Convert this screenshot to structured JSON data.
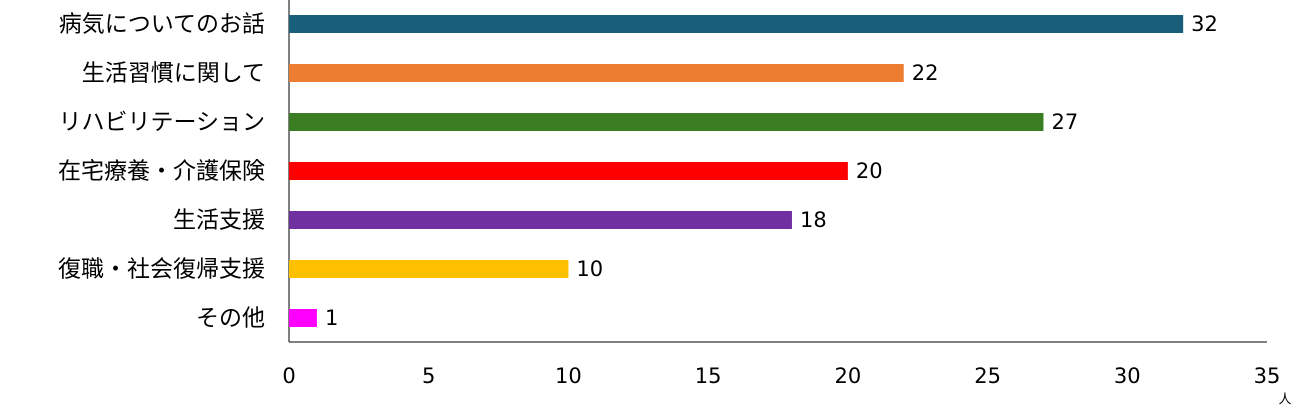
{
  "chart_data": {
    "type": "hbar",
    "categories": [
      "病気についてのお話",
      "生活習慣に関して",
      "リハビリテーション",
      "在宅療養・介護保険",
      "生活支援",
      "復職・社会復帰支援",
      "その他"
    ],
    "values": [
      32,
      22,
      27,
      20,
      18,
      10,
      1
    ],
    "colors": [
      "#1a5f7a",
      "#ed7d31",
      "#3a7d22",
      "#ff0000",
      "#7030a0",
      "#ffc000",
      "#ff00ff"
    ],
    "xlim": [
      0,
      35
    ],
    "xticks": [
      0,
      5,
      10,
      15,
      20,
      25,
      30,
      35
    ],
    "x_unit": "人",
    "grid": false
  }
}
